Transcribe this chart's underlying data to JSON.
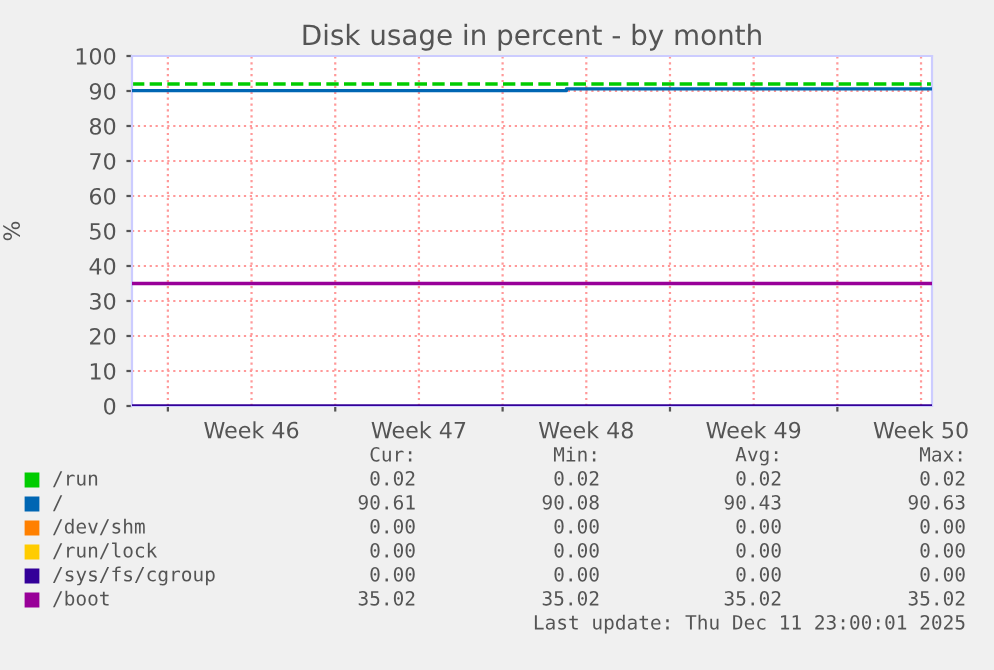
{
  "chart_data": {
    "type": "line",
    "title": "Disk usage in percent - by month",
    "ylabel": "%",
    "xlim": [
      "2025-11-08T12:00",
      "2025-12-11T23:00"
    ],
    "ylim": [
      0,
      100
    ],
    "xticks": [
      {
        "value": "2025-11-10T00:00",
        "label": null
      },
      {
        "value": "2025-11-13T12:00",
        "label": "Week 46"
      },
      {
        "value": "2025-11-17T00:00",
        "label": null
      },
      {
        "value": "2025-11-20T12:00",
        "label": "Week 47"
      },
      {
        "value": "2025-11-24T00:00",
        "label": null
      },
      {
        "value": "2025-11-27T12:00",
        "label": "Week 48"
      },
      {
        "value": "2025-12-01T00:00",
        "label": null
      },
      {
        "value": "2025-12-04T12:00",
        "label": "Week 49"
      },
      {
        "value": "2025-12-08T00:00",
        "label": null
      },
      {
        "value": "2025-12-11T12:00",
        "label": "Week 50"
      }
    ],
    "yticks": [
      0,
      10,
      20,
      30,
      40,
      50,
      60,
      70,
      80,
      90,
      100
    ],
    "grid": true,
    "legend": "bottom",
    "marker": "none",
    "line_style": "solid",
    "series": [
      {
        "name": "/run",
        "color": "#00cc00"
      },
      {
        "name": "/",
        "color": "#0066b3",
        "type": "step",
        "x": [
          "2025-11-08T12:00",
          "2025-11-26T16:00",
          "2025-12-11T23:00"
        ],
        "values": [
          90.1,
          90.6,
          90.6
        ]
      },
      {
        "name": "/dev/shm",
        "color": "#ff8000"
      },
      {
        "name": "/run/lock",
        "color": "#ffcc00"
      },
      {
        "name": "/sys/fs/cgroup",
        "color": "#330099",
        "x": [
          "2025-11-08T12:00",
          "2025-12-11T23:00"
        ],
        "values": [
          0,
          0
        ]
      },
      {
        "name": "/boot",
        "color": "#990099",
        "x": [
          "2025-11-08T12:00",
          "2025-12-11T23:00"
        ],
        "values": [
          35,
          35
        ]
      }
    ],
    "ref_lines": [
      {
        "axis": "y",
        "value": 92,
        "label": null,
        "color": "#00cc00",
        "line_style": "dashed"
      }
    ],
    "annotations": [
      "Cur:",
      "Min:",
      "Avg:",
      "Max:",
      "0.02",
      "0.02",
      "0.02",
      "0.02",
      "90.61",
      "90.08",
      "90.43",
      "90.63",
      "0.00",
      "0.00",
      "0.00",
      "0.00",
      "0.00",
      "0.00",
      "0.00",
      "0.00",
      "0.00",
      "0.00",
      "0.00",
      "0.00",
      "35.02",
      "35.02",
      "35.02",
      "35.02",
      "Last update: Thu Dec 11 23:00:01 2025"
    ]
  }
}
